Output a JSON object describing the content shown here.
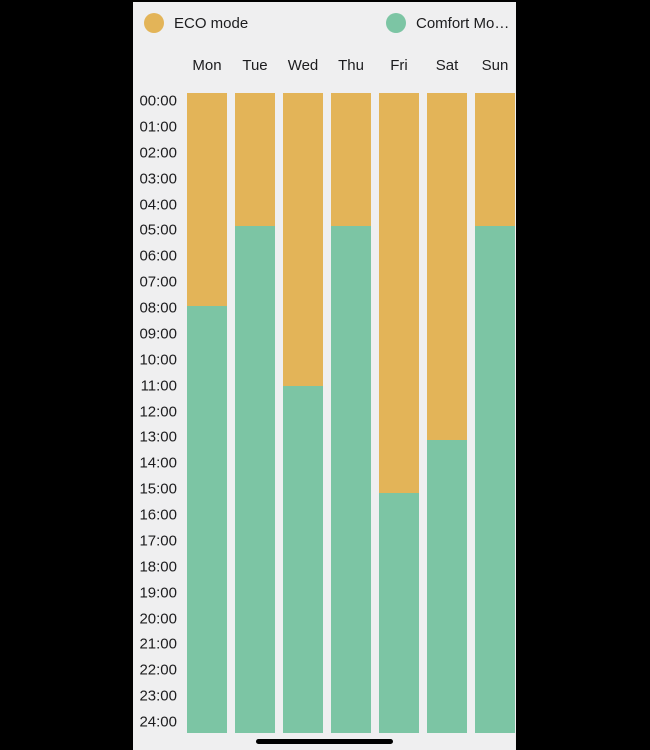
{
  "colors": {
    "eco": "#e3b458",
    "comfort": "#7cc5a4",
    "background": "#efeff0",
    "frame": "#000000",
    "text": "#1c1c1e",
    "home_indicator": "#000000"
  },
  "legend": {
    "items": [
      {
        "id": "eco",
        "label": "ECO mode",
        "color": "#e3b458"
      },
      {
        "id": "comfort",
        "label": "Comfort Mo…",
        "color": "#7cc5a4"
      }
    ]
  },
  "chart_data": {
    "type": "bar",
    "stacked": true,
    "orientation": "vertical",
    "title": "",
    "xlabel": "",
    "ylabel": "",
    "categories": [
      "Mon",
      "Tue",
      "Wed",
      "Thu",
      "Fri",
      "Sat",
      "Sun"
    ],
    "series": [
      {
        "name": "ECO mode",
        "color": "#e3b458",
        "unit": "hours",
        "values": [
          8,
          5,
          11,
          5,
          15,
          13,
          5
        ]
      },
      {
        "name": "Comfort Mode",
        "color": "#7cc5a4",
        "unit": "hours",
        "values": [
          16,
          19,
          13,
          19,
          9,
          11,
          19
        ]
      }
    ],
    "mode_switch_times": {
      "Mon": "08:00",
      "Tue": "05:00",
      "Wed": "11:00",
      "Thu": "05:00",
      "Fri": "15:00",
      "Sat": "13:00",
      "Sun": "05:00"
    },
    "y_ticks": [
      "00:00",
      "01:00",
      "02:00",
      "03:00",
      "04:00",
      "05:00",
      "06:00",
      "07:00",
      "08:00",
      "09:00",
      "10:00",
      "11:00",
      "12:00",
      "13:00",
      "14:00",
      "15:00",
      "16:00",
      "17:00",
      "18:00",
      "19:00",
      "20:00",
      "21:00",
      "22:00",
      "23:00",
      "24:00"
    ],
    "ylim": [
      0,
      24
    ],
    "grid": false,
    "legend_position": "top"
  },
  "home_indicator": {
    "visible": true
  }
}
